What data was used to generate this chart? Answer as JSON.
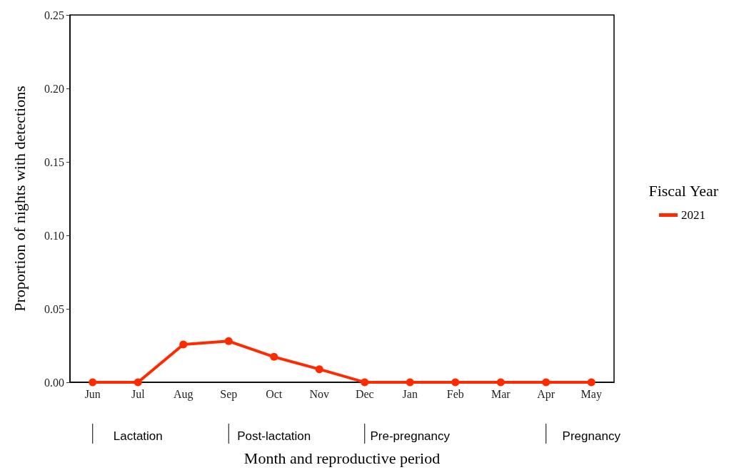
{
  "chart_data": {
    "type": "line",
    "xlabel": "Month and reproductive period",
    "ylabel": "Proportion of nights with detections",
    "legend_title": "Fiscal Year",
    "categories": [
      "Jun",
      "Jul",
      "Aug",
      "Sep",
      "Oct",
      "Nov",
      "Dec",
      "Jan",
      "Feb",
      "Mar",
      "Apr",
      "May"
    ],
    "series": [
      {
        "name": "2021",
        "color": "#ff2a00",
        "values": [
          0,
          0,
          0.0257,
          0.028,
          0.0173,
          0.0089,
          0,
          0,
          0,
          0,
          0,
          0
        ]
      }
    ],
    "ylim": [
      0,
      0.25
    ],
    "yticks": [
      {
        "value": 0,
        "label": "0.00"
      },
      0.05,
      {
        "value": 0.1,
        "label": "0.10"
      },
      0.15,
      {
        "value": 0.2,
        "label": "0.20"
      },
      0.25
    ],
    "grid": false,
    "legend": "right",
    "marker": "circle",
    "line_style": "solid",
    "annotations": [
      "Lactation",
      "Post-lactation",
      "Pre-pregnancy",
      "Pregnancy"
    ]
  }
}
